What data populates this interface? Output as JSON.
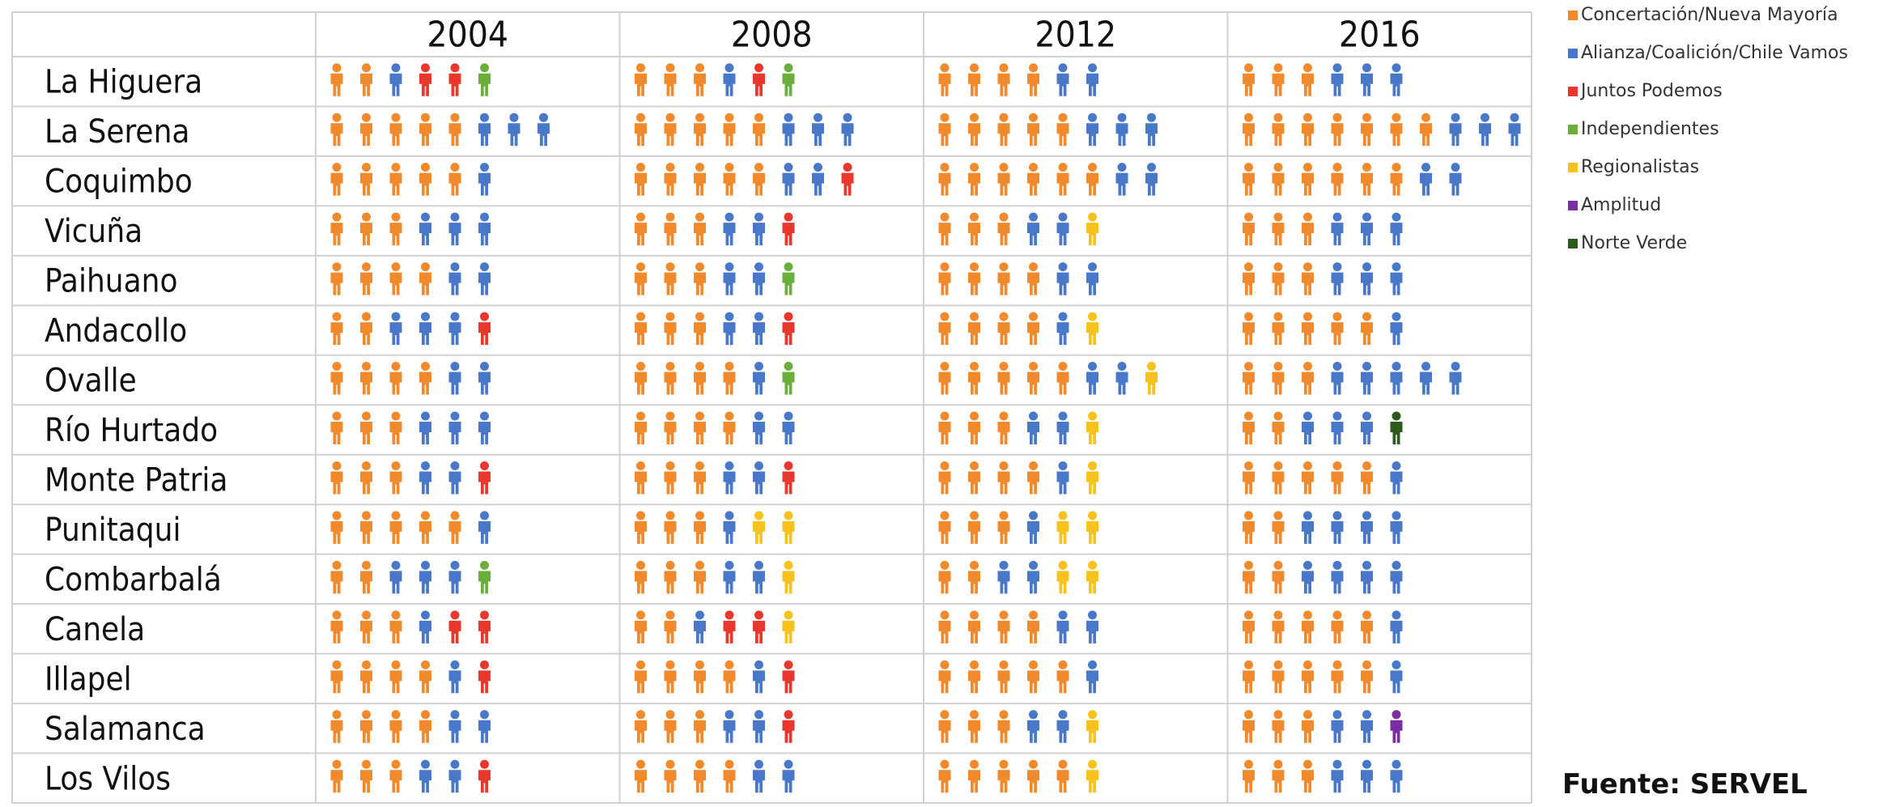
{
  "years": [
    "2004",
    "2008",
    "2012",
    "2016"
  ],
  "legend": [
    {
      "label": "Concertación/Nueva Mayoría",
      "color": "#f08a2c"
    },
    {
      "label": "Alianza/Coalición/Chile Vamos",
      "color": "#4a78c8"
    },
    {
      "label": "Juntos Podemos",
      "color": "#e8372c"
    },
    {
      "label": "Independientes",
      "color": "#6aaf3c"
    },
    {
      "label": "Regionalistas",
      "color": "#f7c21e"
    },
    {
      "label": "Amplitud",
      "color": "#7a2fa0"
    },
    {
      "label": "Norte Verde",
      "color": "#2f5a1e"
    }
  ],
  "rows": [
    {
      "name": "La Higuera",
      "cells": [
        [
          0,
          0,
          1,
          2,
          2,
          3
        ],
        [
          0,
          0,
          0,
          1,
          2,
          3
        ],
        [
          0,
          0,
          0,
          0,
          1,
          1
        ],
        [
          0,
          0,
          0,
          1,
          1,
          1
        ]
      ]
    },
    {
      "name": "La Serena",
      "cells": [
        [
          0,
          0,
          0,
          0,
          0,
          1,
          1,
          1
        ],
        [
          0,
          0,
          0,
          0,
          0,
          1,
          1,
          1
        ],
        [
          0,
          0,
          0,
          0,
          0,
          1,
          1,
          1
        ],
        [
          0,
          0,
          0,
          0,
          0,
          0,
          0,
          1,
          1,
          1
        ]
      ]
    },
    {
      "name": "Coquimbo",
      "cells": [
        [
          0,
          0,
          0,
          0,
          0,
          1
        ],
        [
          0,
          0,
          0,
          0,
          0,
          1,
          1,
          2
        ],
        [
          0,
          0,
          0,
          0,
          0,
          0,
          1,
          1
        ],
        [
          0,
          0,
          0,
          0,
          0,
          0,
          1,
          1
        ]
      ]
    },
    {
      "name": "Vicuña",
      "cells": [
        [
          0,
          0,
          0,
          1,
          1,
          1
        ],
        [
          0,
          0,
          0,
          1,
          1,
          2
        ],
        [
          0,
          0,
          0,
          1,
          1,
          4
        ],
        [
          0,
          0,
          0,
          1,
          1,
          1
        ]
      ]
    },
    {
      "name": "Paihuano",
      "cells": [
        [
          0,
          0,
          0,
          0,
          1,
          1
        ],
        [
          0,
          0,
          0,
          1,
          1,
          3
        ],
        [
          0,
          0,
          0,
          0,
          1,
          1
        ],
        [
          0,
          0,
          0,
          1,
          1,
          1
        ]
      ]
    },
    {
      "name": "Andacollo",
      "cells": [
        [
          0,
          0,
          1,
          1,
          1,
          2
        ],
        [
          0,
          0,
          0,
          1,
          1,
          2
        ],
        [
          0,
          0,
          0,
          0,
          1,
          4
        ],
        [
          0,
          0,
          0,
          0,
          0,
          1
        ]
      ]
    },
    {
      "name": "Ovalle",
      "cells": [
        [
          0,
          0,
          0,
          0,
          1,
          1
        ],
        [
          0,
          0,
          0,
          0,
          1,
          3
        ],
        [
          0,
          0,
          0,
          0,
          0,
          1,
          1,
          4
        ],
        [
          0,
          0,
          0,
          1,
          1,
          1,
          1,
          1
        ]
      ]
    },
    {
      "name": "Río Hurtado",
      "cells": [
        [
          0,
          0,
          0,
          1,
          1,
          1
        ],
        [
          0,
          0,
          0,
          0,
          1,
          1
        ],
        [
          0,
          0,
          0,
          1,
          1,
          4
        ],
        [
          0,
          0,
          1,
          1,
          1,
          6
        ]
      ]
    },
    {
      "name": "Monte Patria",
      "cells": [
        [
          0,
          0,
          0,
          1,
          1,
          2
        ],
        [
          0,
          0,
          0,
          1,
          1,
          2
        ],
        [
          0,
          0,
          0,
          0,
          1,
          4
        ],
        [
          0,
          0,
          0,
          0,
          0,
          1
        ]
      ]
    },
    {
      "name": "Punitaqui",
      "cells": [
        [
          0,
          0,
          0,
          0,
          0,
          1
        ],
        [
          0,
          0,
          0,
          1,
          4,
          4
        ],
        [
          0,
          0,
          0,
          1,
          4,
          4
        ],
        [
          0,
          0,
          1,
          1,
          1,
          1
        ]
      ]
    },
    {
      "name": "Combarbalá",
      "cells": [
        [
          0,
          0,
          1,
          1,
          1,
          3
        ],
        [
          0,
          0,
          0,
          1,
          1,
          4
        ],
        [
          0,
          0,
          1,
          1,
          4,
          4
        ],
        [
          0,
          0,
          1,
          1,
          1,
          1
        ]
      ]
    },
    {
      "name": "Canela",
      "cells": [
        [
          0,
          0,
          0,
          1,
          2,
          2
        ],
        [
          0,
          0,
          1,
          2,
          2,
          4
        ],
        [
          0,
          0,
          0,
          0,
          1,
          1
        ],
        [
          0,
          0,
          0,
          0,
          0,
          1
        ]
      ]
    },
    {
      "name": "Illapel",
      "cells": [
        [
          0,
          0,
          0,
          0,
          1,
          2
        ],
        [
          0,
          0,
          0,
          0,
          1,
          2
        ],
        [
          0,
          0,
          0,
          0,
          0,
          1
        ],
        [
          0,
          0,
          0,
          0,
          0,
          1
        ]
      ]
    },
    {
      "name": "Salamanca",
      "cells": [
        [
          0,
          0,
          0,
          0,
          1,
          1
        ],
        [
          0,
          0,
          0,
          1,
          1,
          2
        ],
        [
          0,
          0,
          0,
          1,
          1,
          4
        ],
        [
          0,
          0,
          0,
          1,
          1,
          5
        ]
      ]
    },
    {
      "name": "Los Vilos",
      "cells": [
        [
          0,
          0,
          0,
          1,
          1,
          2
        ],
        [
          0,
          0,
          0,
          0,
          1,
          1
        ],
        [
          0,
          0,
          0,
          0,
          0,
          4
        ],
        [
          0,
          0,
          0,
          1,
          1,
          1
        ]
      ]
    }
  ],
  "source": "Fuente: SERVEL"
}
